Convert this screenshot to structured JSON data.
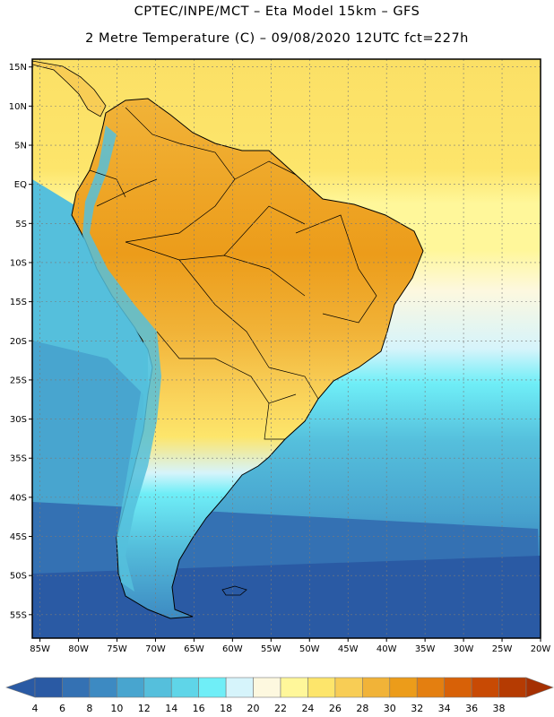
{
  "header": {
    "line1": "CPTEC/INPE/MCT –  Eta Model 15km – GFS",
    "line2": "2 Metre Temperature (C) – 09/08/2020 12UTC fct=227h"
  },
  "map": {
    "lat_ticks": [
      "15N",
      "10N",
      "5N",
      "EQ",
      "5S",
      "10S",
      "15S",
      "20S",
      "25S",
      "30S",
      "35S",
      "40S",
      "45S",
      "50S",
      "55S"
    ],
    "lon_ticks": [
      "85W",
      "80W",
      "75W",
      "70W",
      "65W",
      "60W",
      "55W",
      "50W",
      "45W",
      "40W",
      "35W",
      "30W",
      "25W",
      "20W"
    ],
    "lat_range": [
      -58,
      16
    ],
    "lon_range": [
      -86,
      -20
    ],
    "grid": true
  },
  "colorbar": {
    "labels": [
      "4",
      "6",
      "8",
      "10",
      "12",
      "14",
      "16",
      "18",
      "20",
      "22",
      "24",
      "26",
      "28",
      "30",
      "32",
      "34",
      "36",
      "38"
    ],
    "colors": [
      "#2a5aa4",
      "#3471b3",
      "#3d8ac2",
      "#48a5cf",
      "#55bfdc",
      "#5fd5e8",
      "#6feef7",
      "#d6f4fb",
      "#fdf8df",
      "#fff79a",
      "#fde56b",
      "#f8cd55",
      "#f1b338",
      "#ec9c1a",
      "#e47f10",
      "#d86107",
      "#c84a04",
      "#b53b02"
    ]
  }
}
